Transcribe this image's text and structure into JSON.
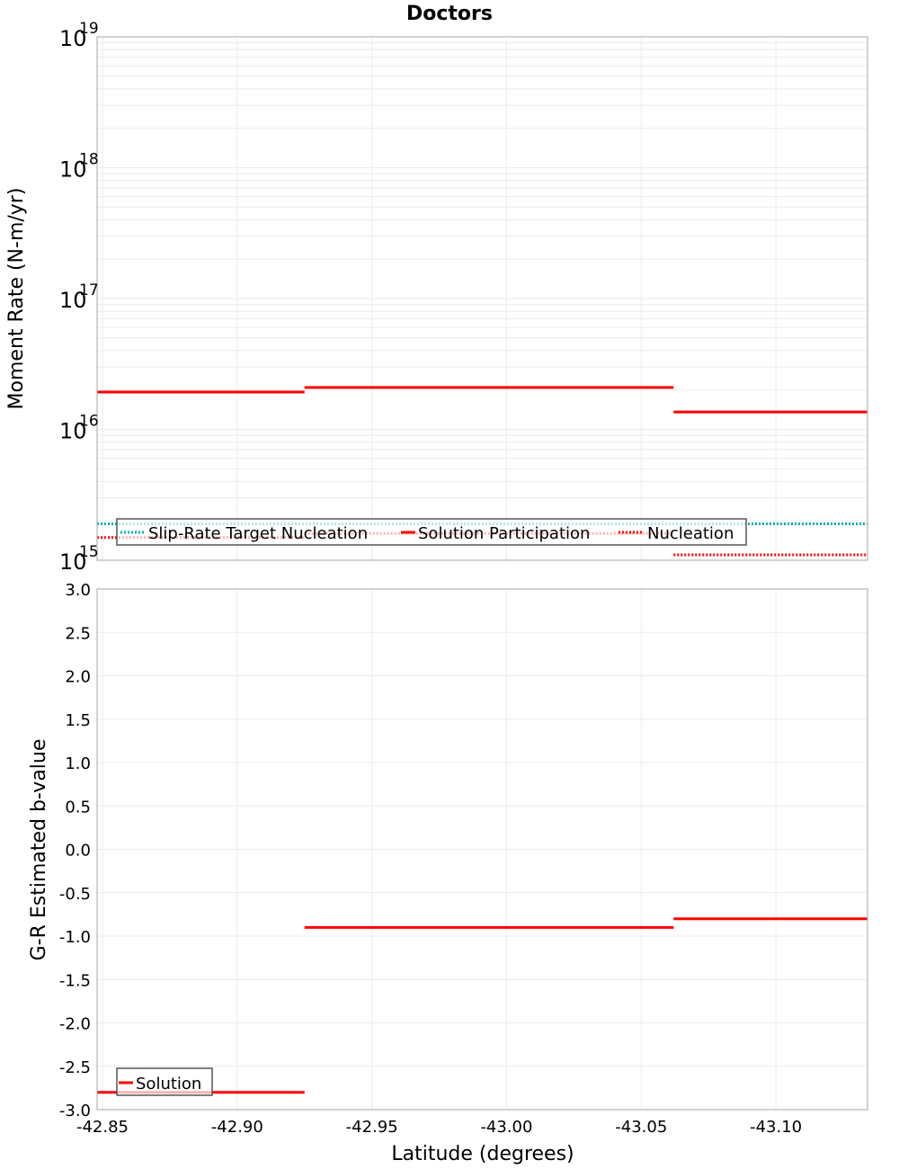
{
  "title": "Doctors",
  "colors": {
    "solution": "#ff0000",
    "target": "#00b0b0",
    "grid": "#ebebeb",
    "frame": "#b4b4b4",
    "legend_border": "#555555"
  },
  "chart_data": [
    {
      "type": "line",
      "title": "Doctors",
      "xlabel": "Latitude (degrees)",
      "ylabel": "Moment Rate (N-m/yr)",
      "yscale": "log",
      "ylim": [
        1000000000000000.0,
        1e+19
      ],
      "xlim": [
        -42.848,
        -43.134
      ],
      "x_ticks": [
        "-42.85",
        "-42.90",
        "-42.95",
        "-43.00",
        "-43.05",
        "-43.10"
      ],
      "y_ticks": [
        {
          "base": "10",
          "exp": "15"
        },
        {
          "base": "10",
          "exp": "16"
        },
        {
          "base": "10",
          "exp": "17"
        },
        {
          "base": "10",
          "exp": "18"
        },
        {
          "base": "10",
          "exp": "19"
        }
      ],
      "grid": true,
      "legend_position": "lower-left",
      "series": [
        {
          "name": "Slip-Rate Target Nucleation",
          "style": "dotted",
          "color": "#00b0b0",
          "segments": [
            {
              "x0": -42.848,
              "x1": -43.134,
              "y": 1900000000000000.0
            }
          ]
        },
        {
          "name": "Solution Participation",
          "style": "solid",
          "color": "#ff0000",
          "segments": [
            {
              "x0": -42.848,
              "x1": -42.925,
              "y": 1.93e+16
            },
            {
              "x0": -42.925,
              "x1": -43.062,
              "y": 2.09e+16
            },
            {
              "x0": -43.062,
              "x1": -43.134,
              "y": 1.36e+16
            }
          ]
        },
        {
          "name": "Nucleation",
          "style": "dotted",
          "color": "#ff0000",
          "segments": [
            {
              "x0": -42.848,
              "x1": -42.925,
              "y": 1490000000000000.0
            },
            {
              "x0": -42.925,
              "x1": -43.062,
              "y": 1600000000000000.0
            },
            {
              "x0": -43.062,
              "x1": -43.134,
              "y": 1100000000000000.0
            }
          ]
        }
      ]
    },
    {
      "type": "line",
      "xlabel": "Latitude (degrees)",
      "ylabel": "G-R Estimated b-value",
      "ylim": [
        -3.0,
        3.0
      ],
      "xlim": [
        -42.848,
        -43.134
      ],
      "x_ticks": [
        "-42.85",
        "-42.90",
        "-42.95",
        "-43.00",
        "-43.05",
        "-43.10"
      ],
      "y_ticks": [
        "3.0",
        "2.5",
        "2.0",
        "1.5",
        "1.0",
        "0.5",
        "0.0",
        "-0.5",
        "-1.0",
        "-1.5",
        "-2.0",
        "-2.5",
        "-3.0"
      ],
      "grid": true,
      "legend_position": "lower-left",
      "series": [
        {
          "name": "Solution",
          "style": "solid",
          "color": "#ff0000",
          "segments": [
            {
              "x0": -42.848,
              "x1": -42.925,
              "y": -2.8
            },
            {
              "x0": -42.925,
              "x1": -43.062,
              "y": -0.9
            },
            {
              "x0": -43.062,
              "x1": -43.134,
              "y": -0.8
            }
          ]
        }
      ]
    }
  ]
}
